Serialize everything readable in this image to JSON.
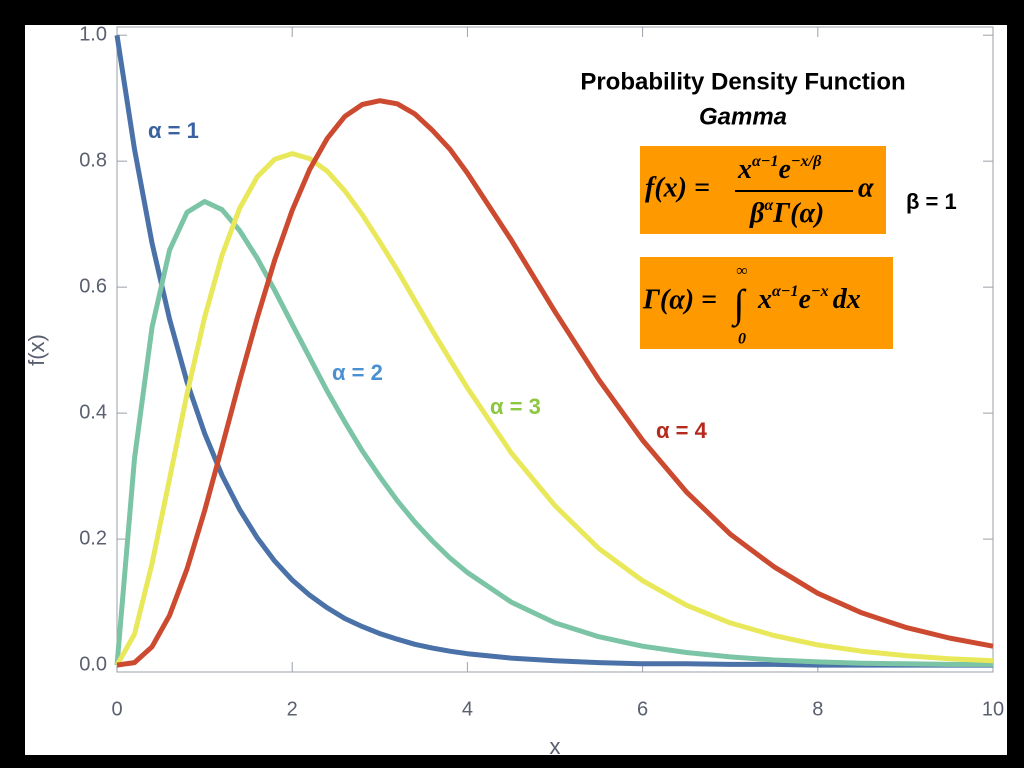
{
  "chart_data": {
    "type": "line",
    "title": "Probability Density Function",
    "subtitle": "Gamma",
    "x_label": "x",
    "y_label": "f(x)",
    "xlim": [
      0,
      10
    ],
    "ylim": [
      -0.011,
      1.013
    ],
    "xticks": [
      0,
      2,
      4,
      6,
      8,
      10
    ],
    "yticks": [
      {
        "value": 0,
        "label": "0.0"
      },
      0.2,
      0.4,
      0.6,
      0.8,
      {
        "value": 1,
        "label": "1.0"
      }
    ],
    "x": [
      0,
      0.2,
      0.4,
      0.6,
      0.8,
      1.0,
      1.2,
      1.4,
      1.6,
      1.8,
      2.0,
      2.2,
      2.4,
      2.6,
      2.8,
      3.0,
      3.2,
      3.4,
      3.6,
      3.8,
      4.0,
      4.5,
      5,
      5.5,
      6,
      6.5,
      7,
      7.5,
      8,
      8.5,
      9,
      9.5,
      10
    ],
    "series": [
      {
        "name": "α = 1",
        "color": "#4a72a8",
        "label_color": "#3a62a0",
        "values": [
          1,
          0.819,
          0.67,
          0.549,
          0.449,
          0.368,
          0.301,
          0.247,
          0.202,
          0.165,
          0.135,
          0.111,
          0.091,
          0.074,
          0.061,
          0.05,
          0.041,
          0.033,
          0.027,
          0.022,
          0.018,
          0.011,
          0.007,
          0.004,
          0.002,
          0.002,
          0.001,
          0.001,
          0,
          0,
          0,
          0,
          0
        ]
      },
      {
        "name": "α = 2",
        "color": "#7cc4a6",
        "label_color": "#4a90d0",
        "values": [
          0,
          0.328,
          0.536,
          0.659,
          0.719,
          0.736,
          0.723,
          0.69,
          0.646,
          0.595,
          0.541,
          0.488,
          0.435,
          0.386,
          0.34,
          0.299,
          0.261,
          0.227,
          0.197,
          0.17,
          0.147,
          0.1,
          0.067,
          0.045,
          0.03,
          0.02,
          0.013,
          0.008,
          0.005,
          0.003,
          0.002,
          0.001,
          0.001
        ]
      },
      {
        "name": "α = 3",
        "color": "#e8e85a",
        "label_color": "#8dc63f",
        "values": [
          0,
          0.049,
          0.161,
          0.296,
          0.431,
          0.552,
          0.651,
          0.725,
          0.775,
          0.803,
          0.812,
          0.804,
          0.784,
          0.753,
          0.715,
          0.672,
          0.627,
          0.579,
          0.531,
          0.485,
          0.44,
          0.337,
          0.253,
          0.185,
          0.134,
          0.095,
          0.067,
          0.047,
          0.032,
          0.022,
          0.015,
          0.01,
          0.007
        ]
      },
      {
        "name": "α = 4",
        "color": "#cc4a30",
        "label_color": "#b52a1c",
        "values": [
          0,
          0.004,
          0.029,
          0.079,
          0.153,
          0.245,
          0.347,
          0.451,
          0.551,
          0.643,
          0.722,
          0.787,
          0.836,
          0.871,
          0.89,
          0.896,
          0.891,
          0.875,
          0.849,
          0.819,
          0.781,
          0.675,
          0.561,
          0.453,
          0.357,
          0.275,
          0.208,
          0.156,
          0.114,
          0.083,
          0.06,
          0.043,
          0.03
        ]
      }
    ],
    "annotations": {
      "beta": "β = 1",
      "pdf_formula": {
        "lhs": "f(x) =",
        "numerator": [
          "x",
          "α−1",
          "e",
          "−x/β"
        ],
        "denominator": [
          "β",
          "α",
          "Γ(α)"
        ],
        "factor": "α"
      },
      "gamma_formula": {
        "lhs": "Γ(α) =",
        "integral": "∫",
        "upper": "∞",
        "lower": "0",
        "integrand": [
          "x",
          "α−1",
          "e",
          "−x",
          "dx"
        ]
      }
    }
  }
}
